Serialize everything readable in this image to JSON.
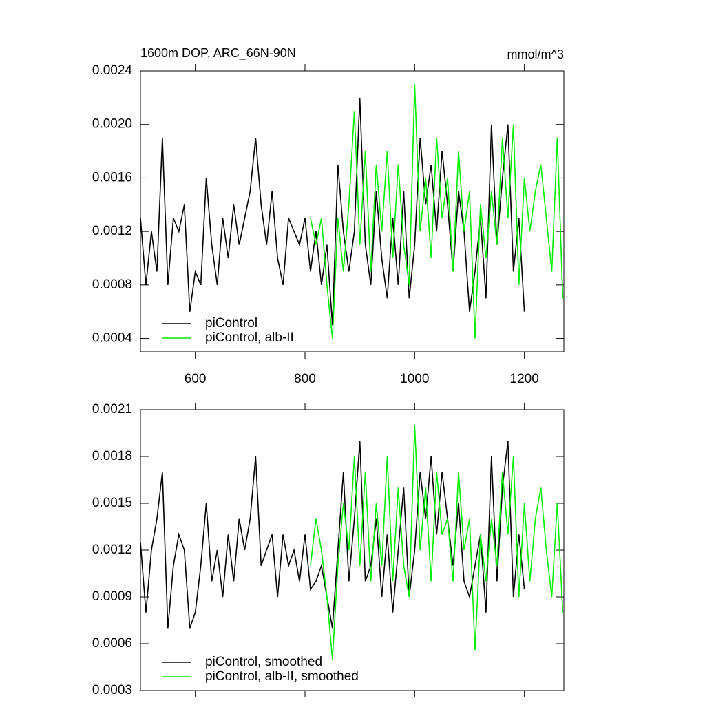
{
  "chart_data": [
    {
      "type": "line",
      "title": "1600m DOP, ARC_66N-90N",
      "units": "mmol/m^3",
      "xlim": [
        500,
        1272
      ],
      "xticks": [
        600,
        800,
        1000,
        1200
      ],
      "ylim": [
        0.0003,
        0.0024
      ],
      "yticks": [
        {
          "value": 0.0004,
          "label": "0.0004"
        },
        {
          "value": 0.0008,
          "label": "0.0008"
        },
        {
          "value": 0.0012,
          "label": "0.0012"
        },
        {
          "value": 0.0016,
          "label": "0.0016"
        },
        {
          "value": 0.002,
          "label": "0.0020"
        },
        {
          "value": 0.0024,
          "label": "0.0024"
        }
      ],
      "legend": "lower left",
      "series": [
        {
          "name": "piControl",
          "color": "#000000",
          "x": [
            500,
            510,
            520,
            530,
            540,
            550,
            560,
            570,
            580,
            590,
            600,
            610,
            620,
            630,
            640,
            650,
            660,
            670,
            680,
            690,
            700,
            710,
            720,
            730,
            740,
            750,
            760,
            770,
            780,
            790,
            800,
            810,
            820,
            830,
            840,
            850,
            860,
            870,
            880,
            890,
            900,
            910,
            920,
            930,
            940,
            950,
            960,
            970,
            980,
            990,
            1000,
            1010,
            1020,
            1030,
            1040,
            1050,
            1060,
            1070,
            1080,
            1090,
            1100,
            1110,
            1120,
            1130,
            1140,
            1150,
            1160,
            1170,
            1180,
            1190,
            1200
          ],
          "values": [
            0.0013,
            0.0008,
            0.0012,
            0.0009,
            0.0019,
            0.0008,
            0.0013,
            0.0012,
            0.0014,
            0.0006,
            0.0009,
            0.0008,
            0.0016,
            0.0011,
            0.0008,
            0.0013,
            0.001,
            0.0014,
            0.0011,
            0.0013,
            0.0015,
            0.0019,
            0.0014,
            0.0011,
            0.0015,
            0.001,
            0.0008,
            0.0013,
            0.0012,
            0.0011,
            0.0013,
            0.0009,
            0.0012,
            0.0008,
            0.0011,
            0.0005,
            0.0017,
            0.0012,
            0.0009,
            0.0012,
            0.0022,
            0.0011,
            0.0008,
            0.0015,
            0.001,
            0.0007,
            0.0013,
            0.0008,
            0.0015,
            0.0007,
            0.0011,
            0.0019,
            0.0014,
            0.0017,
            0.0012,
            0.0018,
            0.0014,
            0.0009,
            0.0015,
            0.0012,
            0.0006,
            0.0009,
            0.0013,
            0.0007,
            0.002,
            0.0011,
            0.0016,
            0.002,
            0.0009,
            0.0013,
            0.0006
          ]
        },
        {
          "name": "piControl, alb-II",
          "color": "#00ee00",
          "x": [
            810,
            820,
            830,
            840,
            850,
            860,
            870,
            880,
            890,
            900,
            910,
            920,
            930,
            940,
            950,
            960,
            970,
            980,
            990,
            1000,
            1010,
            1020,
            1030,
            1040,
            1050,
            1060,
            1070,
            1080,
            1090,
            1100,
            1110,
            1120,
            1130,
            1140,
            1150,
            1160,
            1170,
            1180,
            1190,
            1200,
            1210,
            1220,
            1230,
            1240,
            1250,
            1260,
            1270
          ],
          "values": [
            0.0013,
            0.0011,
            0.0013,
            0.0008,
            0.0004,
            0.0013,
            0.0009,
            0.0014,
            0.0021,
            0.0011,
            0.0018,
            0.0009,
            0.0017,
            0.0012,
            0.0018,
            0.001,
            0.0017,
            0.0011,
            0.0008,
            0.0023,
            0.0012,
            0.0016,
            0.001,
            0.0019,
            0.0013,
            0.0016,
            0.0009,
            0.0018,
            0.0012,
            0.0015,
            0.0004,
            0.0014,
            0.001,
            0.0015,
            0.0011,
            0.0019,
            0.0013,
            0.002,
            0.0008,
            0.0016,
            0.0012,
            0.0015,
            0.0017,
            0.0013,
            0.0009,
            0.0019,
            0.0007
          ]
        }
      ]
    },
    {
      "type": "line",
      "xlim": [
        500,
        1272
      ],
      "ylim": [
        0.0003,
        0.0021
      ],
      "yticks": [
        0.0003,
        0.0006,
        0.0009,
        0.0012,
        0.0015,
        0.0018,
        0.0021
      ],
      "legend": "lower left",
      "series": [
        {
          "name": "piControl, smoothed",
          "color": "#000000",
          "x": [
            500,
            510,
            520,
            530,
            540,
            550,
            560,
            570,
            580,
            590,
            600,
            610,
            620,
            630,
            640,
            650,
            660,
            670,
            680,
            690,
            700,
            710,
            720,
            730,
            740,
            750,
            760,
            770,
            780,
            790,
            800,
            810,
            820,
            830,
            840,
            850,
            860,
            870,
            880,
            890,
            900,
            910,
            920,
            930,
            940,
            950,
            960,
            970,
            980,
            990,
            1000,
            1010,
            1020,
            1030,
            1040,
            1050,
            1060,
            1070,
            1080,
            1090,
            1100,
            1110,
            1120,
            1130,
            1140,
            1150,
            1160,
            1170,
            1180,
            1190,
            1200
          ],
          "values": [
            0.00125,
            0.0008,
            0.0012,
            0.0014,
            0.0017,
            0.0007,
            0.0011,
            0.0013,
            0.0012,
            0.0007,
            0.0008,
            0.0011,
            0.0015,
            0.001,
            0.0012,
            0.0009,
            0.0013,
            0.001,
            0.0014,
            0.0012,
            0.0014,
            0.0018,
            0.0011,
            0.0012,
            0.0013,
            0.0009,
            0.0013,
            0.0011,
            0.0012,
            0.001,
            0.0013,
            0.00095,
            0.001,
            0.0011,
            0.0009,
            0.0007,
            0.0012,
            0.0017,
            0.001,
            0.0014,
            0.0019,
            0.001,
            0.0011,
            0.0014,
            0.0009,
            0.0013,
            0.0008,
            0.0012,
            0.0016,
            0.0009,
            0.0012,
            0.0017,
            0.0014,
            0.0018,
            0.0013,
            0.0017,
            0.0014,
            0.0011,
            0.0015,
            0.001,
            0.0009,
            0.0011,
            0.0013,
            0.0008,
            0.0018,
            0.001,
            0.0016,
            0.0019,
            0.0009,
            0.0013,
            0.00095
          ]
        },
        {
          "name": "piControl, alb-II, smoothed",
          "color": "#00ee00",
          "x": [
            810,
            820,
            830,
            840,
            850,
            860,
            870,
            880,
            890,
            900,
            910,
            920,
            930,
            940,
            950,
            960,
            970,
            980,
            990,
            1000,
            1010,
            1020,
            1030,
            1040,
            1050,
            1060,
            1070,
            1080,
            1090,
            1100,
            1110,
            1120,
            1130,
            1140,
            1150,
            1160,
            1170,
            1180,
            1190,
            1200,
            1210,
            1220,
            1230,
            1240,
            1250,
            1260,
            1270
          ],
          "values": [
            0.0011,
            0.0014,
            0.0012,
            0.0009,
            0.0005,
            0.0011,
            0.0015,
            0.0012,
            0.0018,
            0.0011,
            0.0017,
            0.001,
            0.0015,
            0.0011,
            0.0018,
            0.001,
            0.0016,
            0.0011,
            0.0009,
            0.002,
            0.0012,
            0.0016,
            0.001,
            0.0017,
            0.0013,
            0.0014,
            0.001,
            0.0017,
            0.0012,
            0.0014,
            0.00056,
            0.0013,
            0.001,
            0.0014,
            0.0011,
            0.0017,
            0.0013,
            0.0018,
            0.0009,
            0.0015,
            0.001,
            0.0014,
            0.0016,
            0.0012,
            0.0009,
            0.0015,
            0.0008
          ]
        }
      ]
    }
  ]
}
